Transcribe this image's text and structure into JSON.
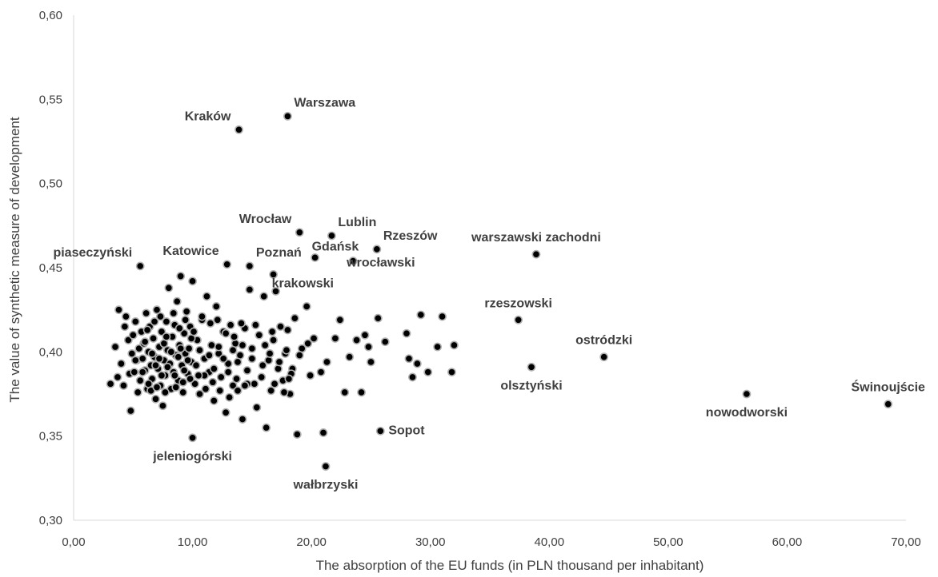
{
  "chart_data": {
    "type": "scatter",
    "xlabel": "The absorption of the EU funds (in PLN thousand per inhabitant)",
    "ylabel": "The value of synthetic measure of development",
    "xlim": [
      0,
      70
    ],
    "ylim": [
      0.3,
      0.6
    ],
    "x_ticks": [
      "0,00",
      "10,00",
      "20,00",
      "30,00",
      "40,00",
      "50,00",
      "60,00",
      "70,00"
    ],
    "y_ticks": [
      "0,30",
      "0,35",
      "0,40",
      "0,45",
      "0,50",
      "0,55",
      "0,60"
    ],
    "grid": false,
    "legend": "none",
    "marker_color": "#000000",
    "marker_edge": "#b0b0b0",
    "labeled_points": [
      {
        "label": "Kraków",
        "x": 13.9,
        "y": 0.532,
        "anchor": "left"
      },
      {
        "label": "Warszawa",
        "x": 18.0,
        "y": 0.54,
        "anchor": "right"
      },
      {
        "label": "Wrocław",
        "x": 19.0,
        "y": 0.471,
        "anchor": "left"
      },
      {
        "label": "Lublin",
        "x": 21.7,
        "y": 0.469,
        "anchor": "right"
      },
      {
        "label": "Rzeszów",
        "x": 25.5,
        "y": 0.461,
        "anchor": "right"
      },
      {
        "label": "warszawski zachodni",
        "x": 38.9,
        "y": 0.458,
        "anchor": "above"
      },
      {
        "label": "piaseczyński",
        "x": 5.6,
        "y": 0.451,
        "anchor": "left"
      },
      {
        "label": "Katowice",
        "x": 12.9,
        "y": 0.452,
        "anchor": "left"
      },
      {
        "label": "Poznań",
        "x": 14.8,
        "y": 0.451,
        "anchor": "right"
      },
      {
        "label": "Gdańsk",
        "x": 20.3,
        "y": 0.456,
        "anchor": "right"
      },
      {
        "label": "wrocławski",
        "x": 23.5,
        "y": 0.454,
        "anchor": "right"
      },
      {
        "label": "krakowski",
        "x": 16.8,
        "y": 0.446,
        "anchor": "right"
      },
      {
        "label": "rzeszowski",
        "x": 37.4,
        "y": 0.419,
        "anchor": "above"
      },
      {
        "label": "ostródzki",
        "x": 44.6,
        "y": 0.397,
        "anchor": "above"
      },
      {
        "label": "olsztyński",
        "x": 38.5,
        "y": 0.391,
        "anchor": "below"
      },
      {
        "label": "Świnoujście",
        "x": 68.5,
        "y": 0.369,
        "anchor": "above"
      },
      {
        "label": "nowodworski",
        "x": 56.6,
        "y": 0.375,
        "anchor": "below"
      },
      {
        "label": "Sopot",
        "x": 25.8,
        "y": 0.353,
        "anchor": "right"
      },
      {
        "label": "jeleniogórski",
        "x": 10.0,
        "y": 0.349,
        "anchor": "below"
      },
      {
        "label": "wałbrzyski",
        "x": 21.2,
        "y": 0.332,
        "anchor": "below"
      }
    ],
    "points": [
      [
        3.1,
        0.381
      ],
      [
        3.5,
        0.403
      ],
      [
        3.7,
        0.385
      ],
      [
        3.8,
        0.425
      ],
      [
        4.0,
        0.393
      ],
      [
        4.2,
        0.38
      ],
      [
        4.3,
        0.415
      ],
      [
        4.4,
        0.421
      ],
      [
        4.6,
        0.407
      ],
      [
        4.7,
        0.387
      ],
      [
        4.8,
        0.365
      ],
      [
        4.9,
        0.399
      ],
      [
        5.0,
        0.41
      ],
      [
        5.1,
        0.388
      ],
      [
        5.2,
        0.418
      ],
      [
        5.3,
        0.395
      ],
      [
        5.4,
        0.376
      ],
      [
        5.5,
        0.402
      ],
      [
        5.6,
        0.383
      ],
      [
        5.7,
        0.412
      ],
      [
        5.8,
        0.396
      ],
      [
        5.9,
        0.405
      ],
      [
        6.0,
        0.389
      ],
      [
        6.1,
        0.423
      ],
      [
        6.2,
        0.378
      ],
      [
        6.3,
        0.4
      ],
      [
        6.4,
        0.415
      ],
      [
        6.5,
        0.392
      ],
      [
        6.6,
        0.384
      ],
      [
        6.7,
        0.408
      ],
      [
        6.8,
        0.397
      ],
      [
        6.9,
        0.372
      ],
      [
        7.0,
        0.425
      ],
      [
        7.1,
        0.39
      ],
      [
        7.2,
        0.403
      ],
      [
        7.3,
        0.38
      ],
      [
        7.4,
        0.412
      ],
      [
        7.5,
        0.368
      ],
      [
        7.6,
        0.395
      ],
      [
        7.7,
        0.386
      ],
      [
        7.8,
        0.418
      ],
      [
        7.9,
        0.401
      ],
      [
        8.0,
        0.438
      ],
      [
        8.1,
        0.393
      ],
      [
        8.2,
        0.378
      ],
      [
        8.3,
        0.409
      ],
      [
        8.4,
        0.388
      ],
      [
        8.5,
        0.416
      ],
      [
        8.6,
        0.398
      ],
      [
        8.7,
        0.43
      ],
      [
        8.8,
        0.383
      ],
      [
        8.9,
        0.404
      ],
      [
        9.0,
        0.445
      ],
      [
        9.1,
        0.392
      ],
      [
        9.2,
        0.376
      ],
      [
        9.3,
        0.411
      ],
      [
        9.4,
        0.399
      ],
      [
        9.5,
        0.424
      ],
      [
        9.6,
        0.387
      ],
      [
        9.7,
        0.402
      ],
      [
        9.8,
        0.415
      ],
      [
        9.9,
        0.394
      ],
      [
        10.0,
        0.442
      ],
      [
        10.2,
        0.381
      ],
      [
        10.4,
        0.407
      ],
      [
        10.6,
        0.375
      ],
      [
        10.8,
        0.419
      ],
      [
        11.0,
        0.396
      ],
      [
        11.2,
        0.433
      ],
      [
        11.4,
        0.388
      ],
      [
        11.6,
        0.404
      ],
      [
        11.8,
        0.371
      ],
      [
        12.0,
        0.427
      ],
      [
        12.2,
        0.399
      ],
      [
        12.4,
        0.385
      ],
      [
        12.6,
        0.412
      ],
      [
        12.8,
        0.364
      ],
      [
        13.0,
        0.393
      ],
      [
        13.2,
        0.416
      ],
      [
        13.4,
        0.38
      ],
      [
        13.6,
        0.405
      ],
      [
        13.8,
        0.377
      ],
      [
        14.0,
        0.398
      ],
      [
        14.2,
        0.36
      ],
      [
        14.4,
        0.414
      ],
      [
        14.6,
        0.389
      ],
      [
        14.8,
        0.437
      ],
      [
        15.0,
        0.402
      ],
      [
        15.2,
        0.381
      ],
      [
        15.4,
        0.367
      ],
      [
        15.6,
        0.41
      ],
      [
        15.8,
        0.385
      ],
      [
        16.0,
        0.433
      ],
      [
        16.2,
        0.355
      ],
      [
        16.4,
        0.395
      ],
      [
        16.6,
        0.377
      ],
      [
        16.8,
        0.407
      ],
      [
        17.0,
        0.436
      ],
      [
        17.2,
        0.39
      ],
      [
        17.4,
        0.415
      ],
      [
        17.6,
        0.383
      ],
      [
        17.8,
        0.399
      ],
      [
        18.0,
        0.413
      ],
      [
        18.2,
        0.375
      ],
      [
        18.4,
        0.39
      ],
      [
        18.6,
        0.42
      ],
      [
        18.8,
        0.351
      ],
      [
        19.2,
        0.402
      ],
      [
        19.6,
        0.427
      ],
      [
        19.9,
        0.386
      ],
      [
        20.2,
        0.408
      ],
      [
        20.8,
        0.388
      ],
      [
        21.0,
        0.352
      ],
      [
        21.3,
        0.394
      ],
      [
        22.0,
        0.408
      ],
      [
        22.4,
        0.419
      ],
      [
        22.8,
        0.376
      ],
      [
        23.2,
        0.397
      ],
      [
        23.8,
        0.407
      ],
      [
        24.2,
        0.376
      ],
      [
        24.5,
        0.41
      ],
      [
        24.8,
        0.403
      ],
      [
        25.0,
        0.394
      ],
      [
        25.6,
        0.42
      ],
      [
        26.2,
        0.406
      ],
      [
        28.0,
        0.411
      ],
      [
        28.2,
        0.396
      ],
      [
        28.5,
        0.385
      ],
      [
        28.9,
        0.393
      ],
      [
        29.2,
        0.422
      ],
      [
        29.8,
        0.388
      ],
      [
        30.6,
        0.403
      ],
      [
        31.0,
        0.421
      ],
      [
        31.8,
        0.388
      ],
      [
        32.0,
        0.404
      ],
      [
        5.2,
        0.395
      ],
      [
        5.8,
        0.388
      ],
      [
        6.0,
        0.406
      ],
      [
        6.3,
        0.381
      ],
      [
        6.6,
        0.399
      ],
      [
        6.9,
        0.392
      ],
      [
        7.2,
        0.396
      ],
      [
        7.4,
        0.386
      ],
      [
        7.6,
        0.405
      ],
      [
        7.9,
        0.391
      ],
      [
        8.2,
        0.4
      ],
      [
        8.5,
        0.386
      ],
      [
        8.8,
        0.397
      ],
      [
        9.0,
        0.402
      ],
      [
        9.3,
        0.389
      ],
      [
        9.6,
        0.395
      ],
      [
        9.9,
        0.408
      ],
      [
        10.3,
        0.392
      ],
      [
        10.6,
        0.401
      ],
      [
        11.0,
        0.386
      ],
      [
        11.4,
        0.398
      ],
      [
        11.8,
        0.39
      ],
      [
        12.2,
        0.403
      ],
      [
        12.6,
        0.396
      ],
      [
        13.0,
        0.388
      ],
      [
        13.4,
        0.401
      ],
      [
        13.8,
        0.394
      ],
      [
        14.2,
        0.404
      ],
      [
        14.6,
        0.381
      ],
      [
        15.0,
        0.396
      ],
      [
        6.2,
        0.413
      ],
      [
        6.8,
        0.418
      ],
      [
        7.3,
        0.421
      ],
      [
        7.8,
        0.409
      ],
      [
        8.4,
        0.423
      ],
      [
        8.9,
        0.414
      ],
      [
        9.4,
        0.419
      ],
      [
        10.1,
        0.412
      ],
      [
        10.8,
        0.421
      ],
      [
        11.5,
        0.417
      ],
      [
        12.1,
        0.419
      ],
      [
        12.8,
        0.411
      ],
      [
        13.5,
        0.409
      ],
      [
        14.1,
        0.417
      ],
      [
        15.3,
        0.416
      ],
      [
        16.5,
        0.399
      ],
      [
        17.3,
        0.394
      ],
      [
        18.3,
        0.387
      ],
      [
        19.0,
        0.398
      ],
      [
        19.7,
        0.405
      ],
      [
        6.5,
        0.377
      ],
      [
        7.0,
        0.379
      ],
      [
        7.7,
        0.376
      ],
      [
        8.6,
        0.379
      ],
      [
        9.2,
        0.382
      ],
      [
        9.8,
        0.384
      ],
      [
        10.5,
        0.386
      ],
      [
        11.1,
        0.378
      ],
      [
        11.7,
        0.382
      ],
      [
        12.3,
        0.377
      ],
      [
        13.1,
        0.373
      ],
      [
        13.7,
        0.384
      ],
      [
        14.4,
        0.38
      ],
      [
        16.9,
        0.381
      ],
      [
        17.7,
        0.376
      ],
      [
        18.1,
        0.384
      ],
      [
        15.9,
        0.392
      ],
      [
        16.1,
        0.404
      ],
      [
        16.7,
        0.412
      ],
      [
        17.9,
        0.401
      ]
    ]
  }
}
